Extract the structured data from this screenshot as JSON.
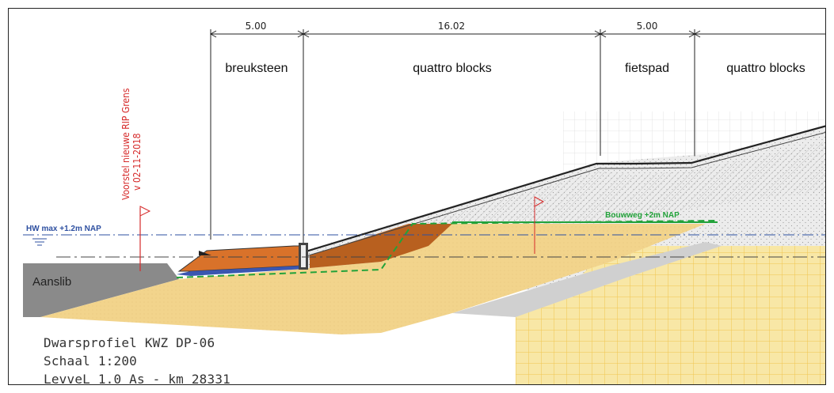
{
  "dimensions": [
    "5.00",
    "16.02",
    "5.00"
  ],
  "zones": [
    "breuksteen",
    "quattro blocks",
    "fietspad",
    "quattro blocks"
  ],
  "rip_proposal": {
    "line1": "Voorstel nieuwe RIP Grens",
    "line2": "v 02-11-2018"
  },
  "levels": {
    "hw": "HW max +1.2m NAP",
    "bouwweg": "Bouwweg +2m NAP"
  },
  "soil_label": "Aanslib",
  "caption": {
    "line1": "Dwarsprofiel KWZ DP-06",
    "line2": "Schaal 1:200",
    "line3": "LevveL 1.0 As - km 28331"
  },
  "colors": {
    "sand": "#f2d48c",
    "breuksteen": "#d9722a",
    "quattro_fill": "#b8601f",
    "geotextile": "#3a56b0",
    "rip_red": "#d62a2a",
    "bouwweg_green": "#22a23a",
    "hw_blue": "#2d4fa0",
    "aanslib_grey": "#8a8a8a"
  }
}
